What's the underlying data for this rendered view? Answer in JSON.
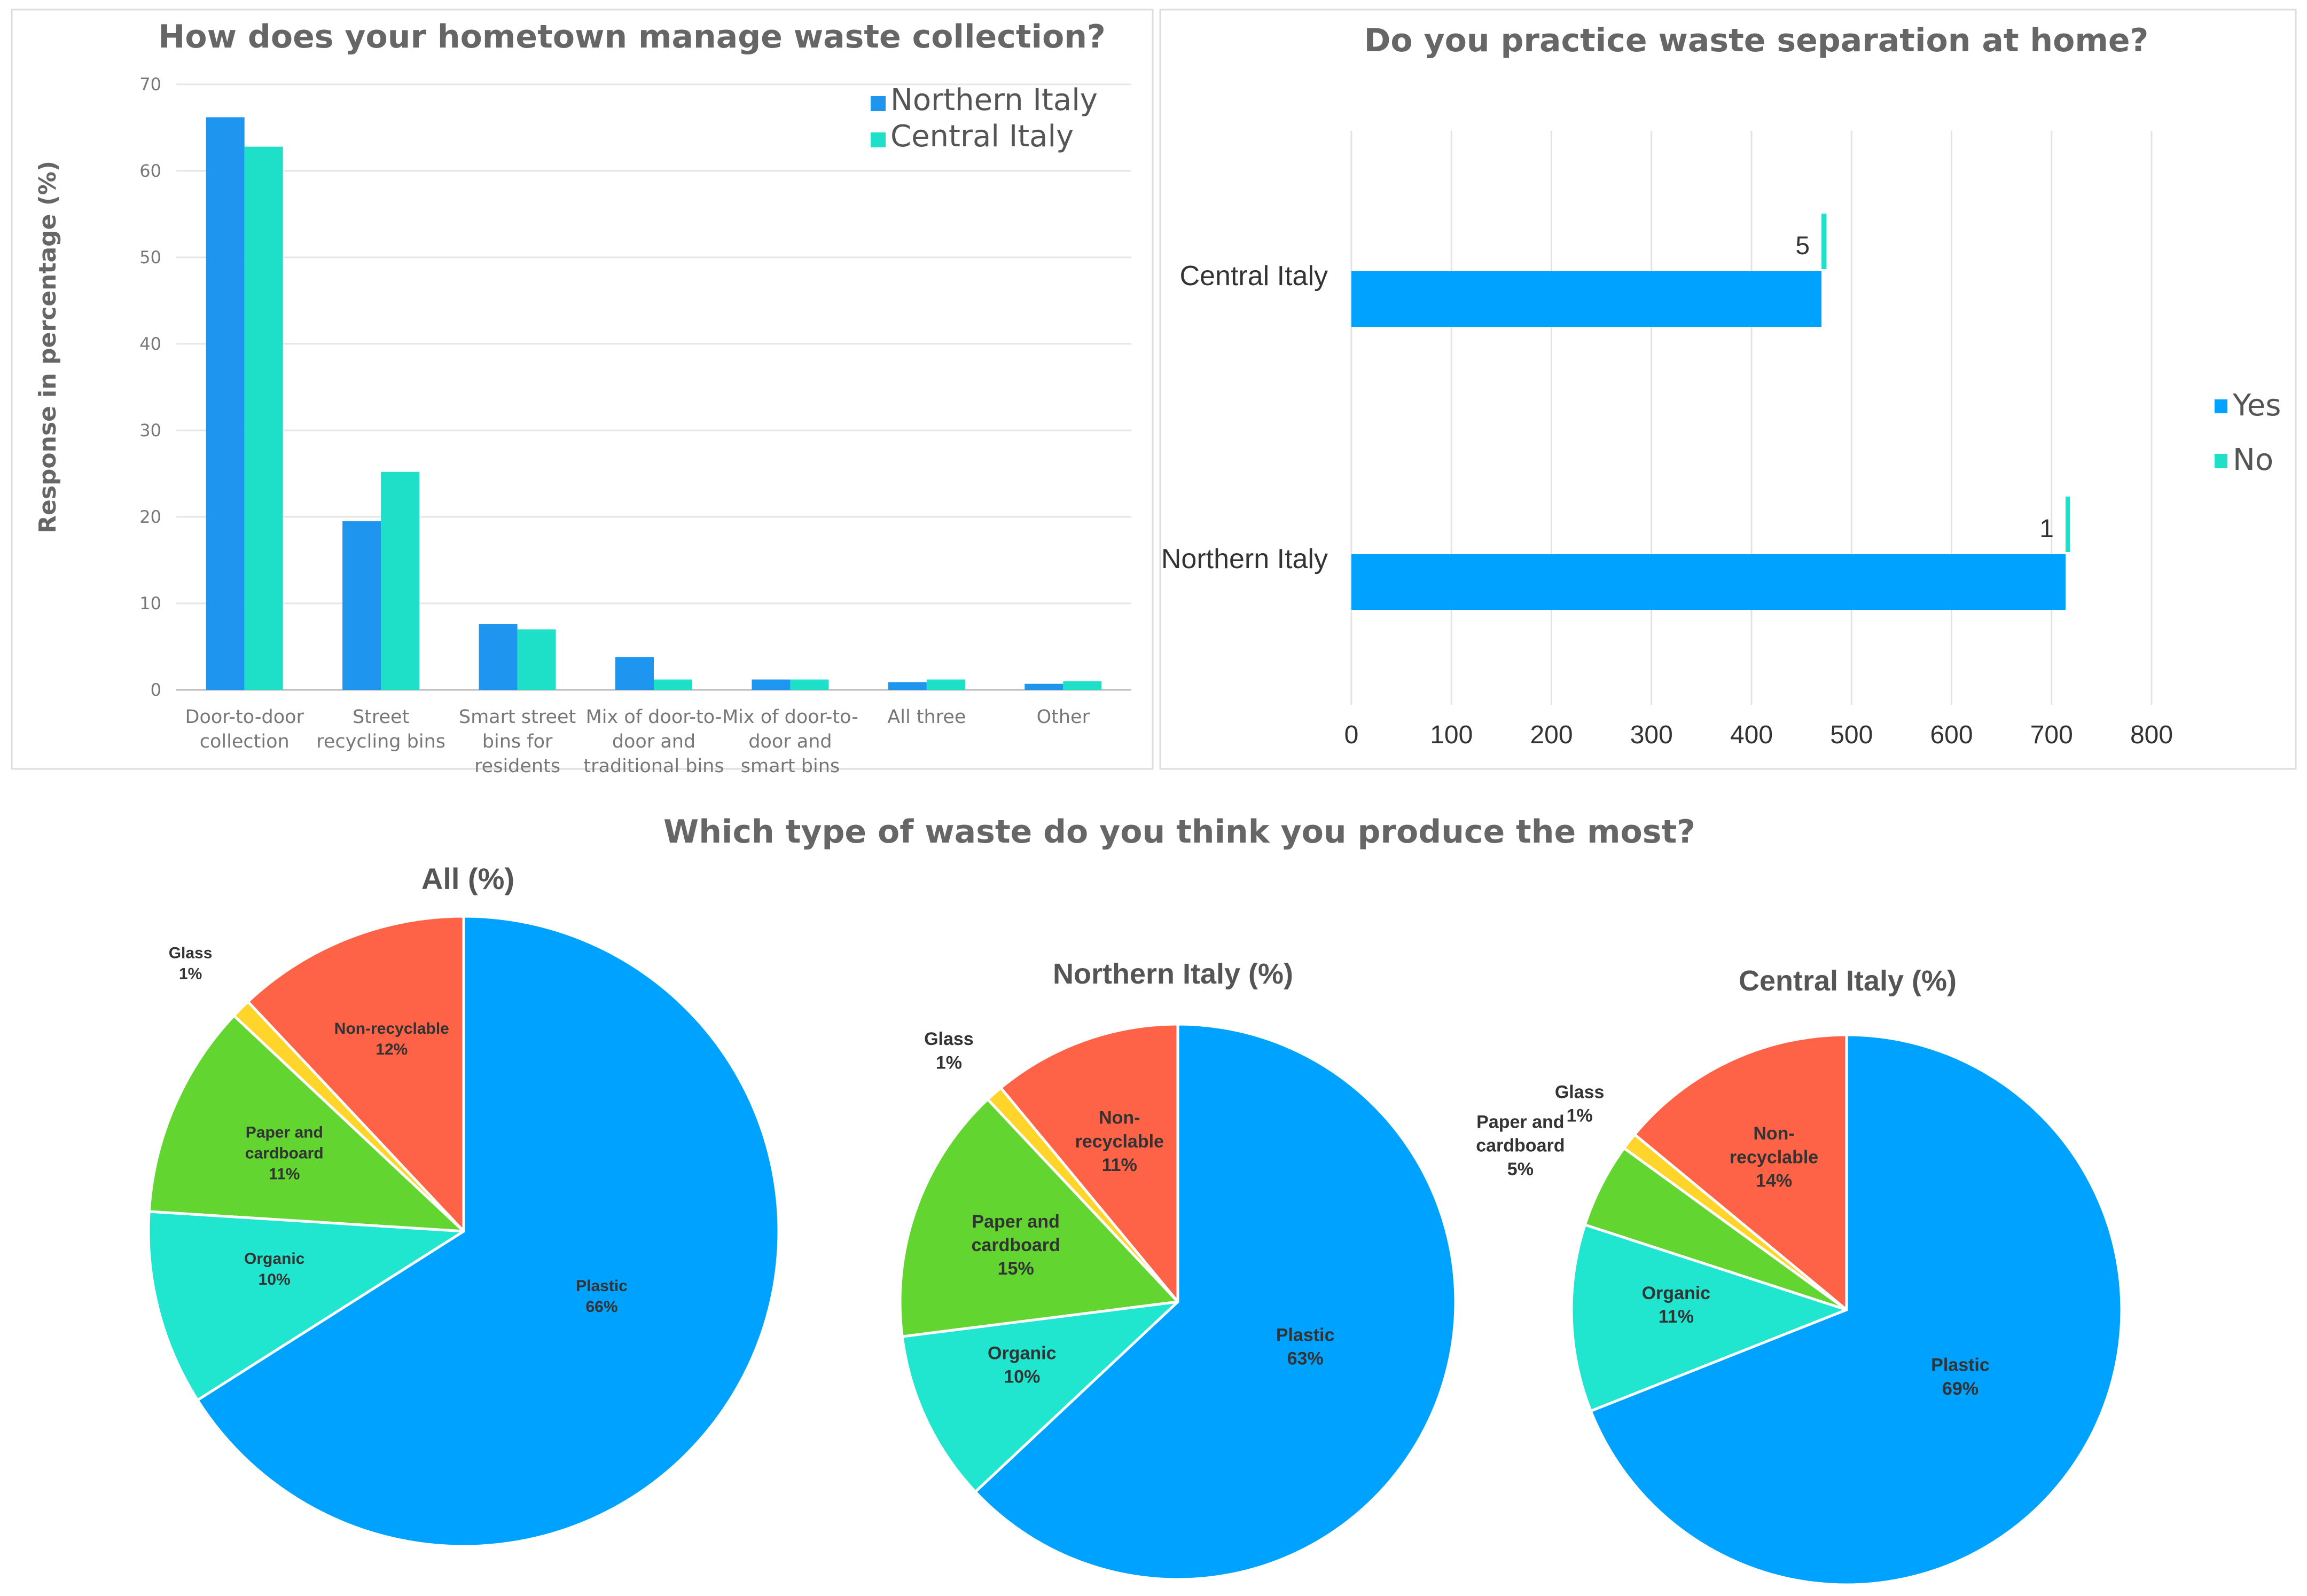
{
  "colors": {
    "northern": "#1e96f0",
    "central": "#1ee0c8",
    "yes": "#00a2ff",
    "no": "#1ee0c8",
    "plastic": "#00a2ff",
    "organic": "#21e6cf",
    "paper": "#62d531",
    "glass": "#ffd52b",
    "nonrec": "#ff6347"
  },
  "chart_data": [
    {
      "type": "bar",
      "title": "How does your hometown manage waste collection?",
      "xlabel": "",
      "ylabel": "Response in percentage (%)",
      "ylim": [
        0,
        70
      ],
      "yticks": [
        "0",
        "10",
        "20",
        "30",
        "40",
        "50",
        "60",
        "70"
      ],
      "grid": true,
      "legend_position": "top-right",
      "categories": [
        [
          "Door-to-door",
          "collection"
        ],
        [
          "Street",
          "recycling bins"
        ],
        [
          "Smart street",
          "bins for",
          "residents"
        ],
        [
          "Mix of door-to-",
          "door and",
          "traditional bins"
        ],
        [
          "Mix of door-to-",
          "door and",
          "smart bins"
        ],
        [
          "All three"
        ],
        [
          "Other"
        ]
      ],
      "series": [
        {
          "name": "Northern Italy",
          "values": [
            66.2,
            19.5,
            7.6,
            3.8,
            1.2,
            0.9,
            0.7
          ]
        },
        {
          "name": "Central Italy",
          "values": [
            62.8,
            25.2,
            7.0,
            1.2,
            1.2,
            1.2,
            1.0
          ]
        }
      ]
    },
    {
      "type": "bar",
      "orientation": "horizontal",
      "title": "Do you practice waste separation at home?",
      "xlim": [
        0,
        800
      ],
      "xticks": [
        "0",
        "100",
        "200",
        "300",
        "400",
        "500",
        "600",
        "700",
        "800"
      ],
      "grid": true,
      "legend_position": "right",
      "categories": [
        "Central Italy",
        "Northern Italy"
      ],
      "series": [
        {
          "name": "Yes",
          "values": [
            470,
            714
          ]
        },
        {
          "name": "No",
          "values": [
            5,
            1
          ]
        }
      ],
      "data_labels": [
        "5",
        "1"
      ]
    },
    {
      "type": "pie",
      "title": "Which type of waste do you think you produce the most?",
      "pies": [
        {
          "title": "All (%)",
          "slices": [
            {
              "name": "Non-recyclable",
              "label": [
                "Non-recyclable",
                "12%"
              ],
              "value": 12
            },
            {
              "name": "Glass",
              "label": [
                "Glass",
                "1%"
              ],
              "value": 1
            },
            {
              "name": "Paper and cardboard",
              "label": [
                "Paper and",
                "cardboard",
                "11%"
              ],
              "value": 11
            },
            {
              "name": "Organic",
              "label": [
                "Organic",
                "10%"
              ],
              "value": 10
            },
            {
              "name": "Plastic",
              "label": [
                "Plastic",
                "66%"
              ],
              "value": 66
            }
          ]
        },
        {
          "title": "Northern Italy (%)",
          "slices": [
            {
              "name": "Non-recyclable",
              "label": [
                "Non-",
                "recyclable",
                "11%"
              ],
              "value": 11
            },
            {
              "name": "Glass",
              "label": [
                "Glass",
                "1%"
              ],
              "value": 1
            },
            {
              "name": "Paper and cardboard",
              "label": [
                "Paper and",
                "cardboard",
                "15%"
              ],
              "value": 15
            },
            {
              "name": "Organic",
              "label": [
                "Organic",
                "10%"
              ],
              "value": 10
            },
            {
              "name": "Plastic",
              "label": [
                "Plastic",
                "63%"
              ],
              "value": 63
            }
          ]
        },
        {
          "title": "Central Italy (%)",
          "slices": [
            {
              "name": "Non-recyclable",
              "label": [
                "Non-",
                "recyclable",
                "14%"
              ],
              "value": 14
            },
            {
              "name": "Glass",
              "label": [
                "Glass",
                "1%"
              ],
              "value": 1
            },
            {
              "name": "Paper and cardboard",
              "label": [
                "Paper and",
                "cardboard",
                "5%"
              ],
              "value": 5
            },
            {
              "name": "Organic",
              "label": [
                "Organic",
                "11%"
              ],
              "value": 11
            },
            {
              "name": "Plastic",
              "label": [
                "Plastic",
                "69%"
              ],
              "value": 69
            }
          ]
        }
      ]
    }
  ]
}
